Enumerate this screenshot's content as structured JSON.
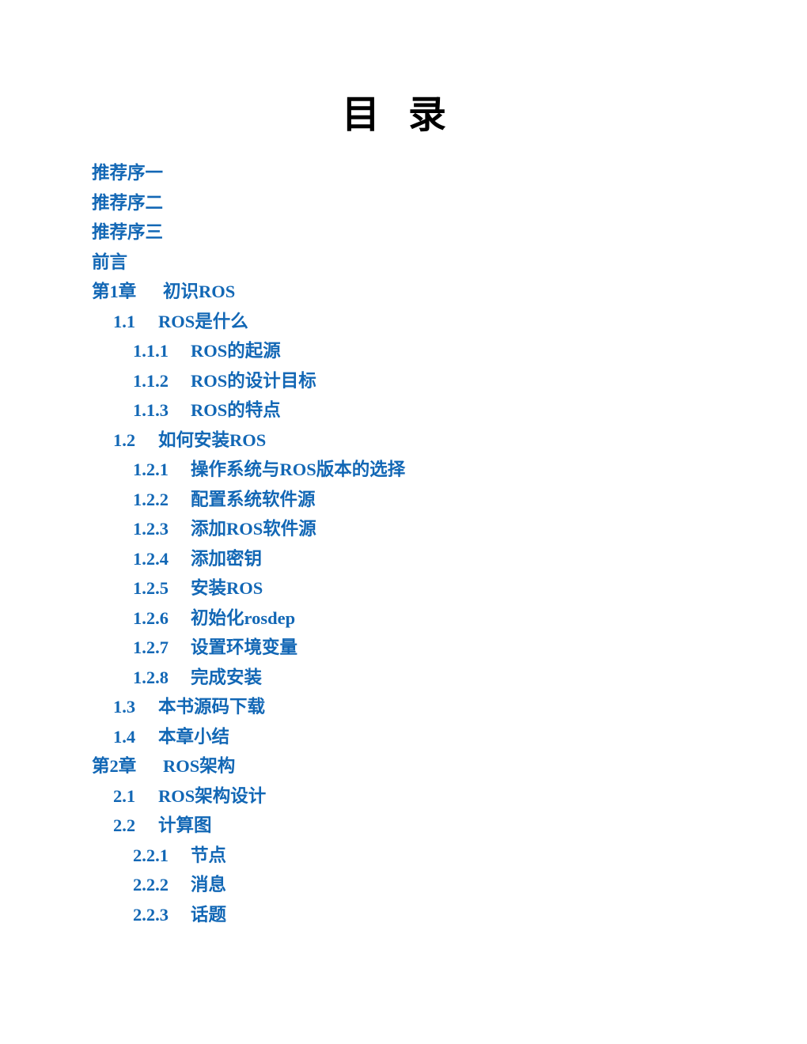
{
  "doc": {
    "title": "目 录"
  },
  "colors": {
    "link_blue": "#1267b5",
    "title_black": "#000000",
    "background": "#ffffff"
  },
  "toc": {
    "entries": [
      {
        "level": 0,
        "number": "",
        "label": "推荐序一"
      },
      {
        "level": 0,
        "number": "",
        "label": "推荐序二"
      },
      {
        "level": 0,
        "number": "",
        "label": "推荐序三"
      },
      {
        "level": 0,
        "number": "",
        "label": "前言"
      },
      {
        "level": 0,
        "number": "第1章",
        "label": "初识ROS"
      },
      {
        "level": 1,
        "number": "1.1",
        "label": "ROS是什么"
      },
      {
        "level": 2,
        "number": "1.1.1",
        "label": "ROS的起源"
      },
      {
        "level": 2,
        "number": "1.1.2",
        "label": "ROS的设计目标"
      },
      {
        "level": 2,
        "number": "1.1.3",
        "label": "ROS的特点"
      },
      {
        "level": 1,
        "number": "1.2",
        "label": "如何安装ROS"
      },
      {
        "level": 2,
        "number": "1.2.1",
        "label": "操作系统与ROS版本的选择"
      },
      {
        "level": 2,
        "number": "1.2.2",
        "label": "配置系统软件源"
      },
      {
        "level": 2,
        "number": "1.2.3",
        "label": "添加ROS软件源"
      },
      {
        "level": 2,
        "number": "1.2.4",
        "label": "添加密钥"
      },
      {
        "level": 2,
        "number": "1.2.5",
        "label": "安装ROS"
      },
      {
        "level": 2,
        "number": "1.2.6",
        "label": "初始化rosdep"
      },
      {
        "level": 2,
        "number": "1.2.7",
        "label": "设置环境变量"
      },
      {
        "level": 2,
        "number": "1.2.8",
        "label": "完成安装"
      },
      {
        "level": 1,
        "number": "1.3",
        "label": "本书源码下载"
      },
      {
        "level": 1,
        "number": "1.4",
        "label": "本章小结"
      },
      {
        "level": 0,
        "number": "第2章",
        "label": "ROS架构"
      },
      {
        "level": 1,
        "number": "2.1",
        "label": "ROS架构设计"
      },
      {
        "level": 1,
        "number": "2.2",
        "label": "计算图"
      },
      {
        "level": 2,
        "number": "2.2.1",
        "label": "节点"
      },
      {
        "level": 2,
        "number": "2.2.2",
        "label": "消息"
      },
      {
        "level": 2,
        "number": "2.2.3",
        "label": "话题"
      }
    ]
  }
}
